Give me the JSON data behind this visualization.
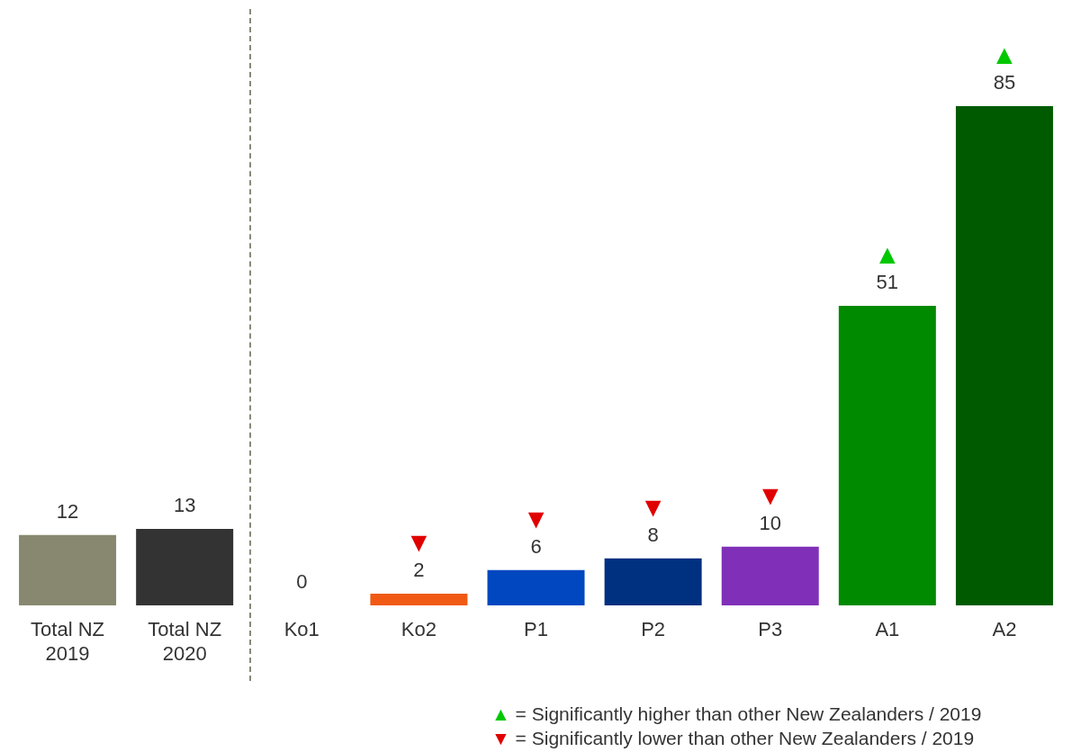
{
  "chart_data": {
    "type": "bar",
    "categories": [
      "Total NZ\n2019",
      "Total NZ\n2020",
      "Ko1",
      "Ko2",
      "P1",
      "P2",
      "P3",
      "A1",
      "A2"
    ],
    "values": [
      12,
      13,
      0,
      2,
      6,
      8,
      10,
      51,
      85
    ],
    "colors": [
      "#888870",
      "#333333",
      "#f05a14",
      "#f05a14",
      "#0047c0",
      "#003080",
      "#8030b8",
      "#008a00",
      "#005a00"
    ],
    "data_labels": true,
    "grid": false,
    "legend": false,
    "annotations": [
      "▲ = Significantly higher than other New Zealanders / 2019",
      "▼ = Significantly lower than other New Zealanders / 2019",
      {
        "text": "▼",
        "x": "Ko2",
        "y": 2
      },
      {
        "text": "▼",
        "x": "P1",
        "y": 6
      },
      {
        "text": "▼",
        "x": "P2",
        "y": 8
      },
      {
        "text": "▼",
        "x": "P3",
        "y": 10
      },
      {
        "text": "▲",
        "x": "A1",
        "y": 51
      },
      {
        "text": "▲",
        "x": "A2",
        "y": 85
      }
    ]
  }
}
